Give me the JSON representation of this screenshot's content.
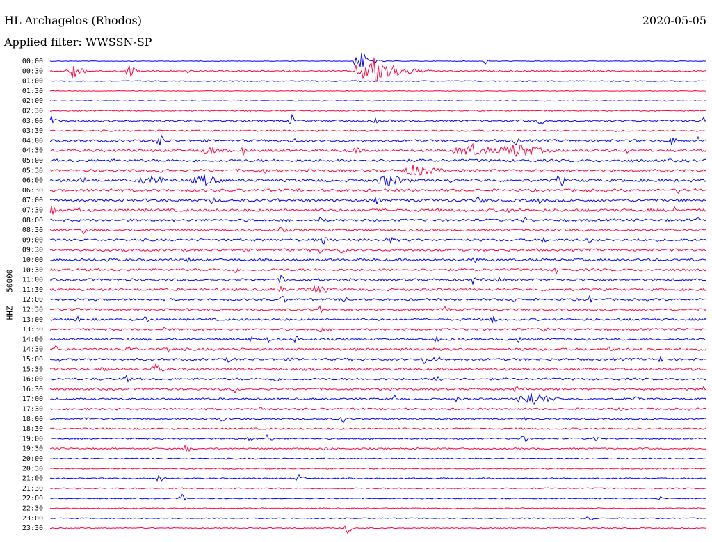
{
  "header": {
    "station": "HL Archagelos (Rhodos)",
    "date": "2020-05-05",
    "filter": "Applied filter: WWSSN-SP"
  },
  "chart_data": {
    "type": "line",
    "title": "HL Archagelos (Rhodos)",
    "ylabel": "HHZ - 50000",
    "row_labels": [
      "00:00",
      "00:30",
      "01:00",
      "01:30",
      "02:00",
      "02:30",
      "03:00",
      "03:30",
      "04:00",
      "04:30",
      "05:00",
      "05:30",
      "06:00",
      "06:30",
      "07:00",
      "07:30",
      "08:00",
      "08:30",
      "09:00",
      "09:30",
      "10:00",
      "10:30",
      "11:00",
      "11:30",
      "12:00",
      "12:30",
      "13:00",
      "13:30",
      "14:00",
      "14:30",
      "15:00",
      "15:30",
      "16:00",
      "16:30",
      "17:00",
      "17:30",
      "18:00",
      "18:30",
      "19:00",
      "19:30",
      "20:00",
      "20:30",
      "21:00",
      "21:30",
      "22:00",
      "22:30",
      "23:00",
      "23:30"
    ],
    "series_colors": [
      "#0000ff",
      "#ff0040"
    ],
    "noise_levels": [
      0.5,
      1.2,
      0.8,
      0.5,
      0.6,
      1.0,
      1.6,
      1.3,
      2.0,
      2.2,
      2.2,
      2.0,
      2.4,
      2.2,
      2.2,
      2.4,
      2.0,
      2.0,
      2.0,
      2.0,
      2.0,
      2.0,
      2.0,
      2.0,
      1.8,
      1.8,
      1.8,
      1.8,
      1.8,
      2.0,
      2.0,
      2.2,
      1.8,
      1.8,
      1.6,
      1.6,
      1.4,
      1.4,
      1.2,
      1.2,
      1.0,
      1.0,
      1.0,
      1.0,
      0.8,
      0.8,
      0.8,
      0.8
    ]
  }
}
